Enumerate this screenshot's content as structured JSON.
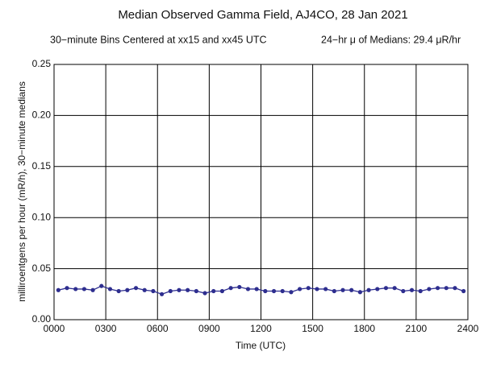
{
  "chart_data": {
    "type": "line",
    "title": "Median Observed Gamma Field, AJ4CO, 28 Jan 2021",
    "subtitle": "30−minute Bins Centered at xx15 and xx45 UTC",
    "annotation": "24−hr μ of Medians: 29.4 μR/hr",
    "x_label": "Time (UTC)",
    "y_label": "milliroentgens per hour (mR/h), 30−minute medians",
    "x": [
      0.25,
      0.75,
      1.25,
      1.75,
      2.25,
      2.75,
      3.25,
      3.75,
      4.25,
      4.75,
      5.25,
      5.75,
      6.25,
      6.75,
      7.25,
      7.75,
      8.25,
      8.75,
      9.25,
      9.75,
      10.25,
      10.75,
      11.25,
      11.75,
      12.25,
      12.75,
      13.25,
      13.75,
      14.25,
      14.75,
      15.25,
      15.75,
      16.25,
      16.75,
      17.25,
      17.75,
      18.25,
      18.75,
      19.25,
      19.75,
      20.25,
      20.75,
      21.25,
      21.75,
      22.25,
      22.75,
      23.25,
      23.75
    ],
    "series": [
      {
        "color": "#2e2e8f",
        "values": [
          0.029,
          0.031,
          0.03,
          0.03,
          0.029,
          0.033,
          0.03,
          0.028,
          0.029,
          0.031,
          0.029,
          0.028,
          0.025,
          0.028,
          0.029,
          0.029,
          0.028,
          0.026,
          0.028,
          0.028,
          0.031,
          0.032,
          0.03,
          0.03,
          0.028,
          0.028,
          0.028,
          0.027,
          0.03,
          0.031,
          0.03,
          0.03,
          0.028,
          0.029,
          0.029,
          0.027,
          0.029,
          0.03,
          0.031,
          0.031,
          0.028,
          0.029,
          0.028,
          0.03,
          0.031,
          0.031,
          0.031,
          0.028
        ]
      }
    ],
    "xlim": [
      0,
      24
    ],
    "xticks": [
      {
        "value": 0,
        "label": "0000"
      },
      {
        "value": 3,
        "label": "0300"
      },
      {
        "value": 6,
        "label": "0600"
      },
      {
        "value": 9,
        "label": "0900"
      },
      {
        "value": 12,
        "label": "1200"
      },
      {
        "value": 15,
        "label": "1500"
      },
      {
        "value": 18,
        "label": "1800"
      },
      {
        "value": 21,
        "label": "2100"
      },
      {
        "value": 24,
        "label": "2400"
      }
    ],
    "ylim": [
      0,
      0.25
    ],
    "yticks": [
      {
        "value": 0,
        "label": "0.00"
      },
      0.05,
      {
        "value": 0.1,
        "label": "0.10"
      },
      0.15,
      {
        "value": 0.2,
        "label": "0.20"
      },
      0.25
    ],
    "grid": true
  }
}
